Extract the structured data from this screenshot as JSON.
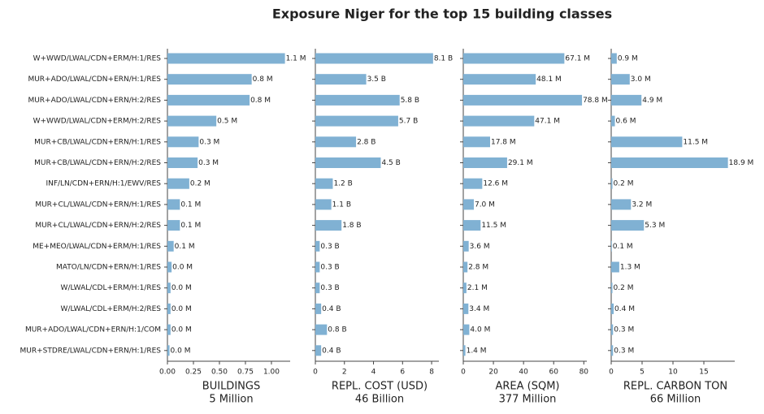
{
  "title": "Exposure Niger for the top 15 building classes",
  "chart_data": [
    {
      "type": "barh",
      "color": "#80b1d3",
      "xlabel": [
        "BUILDINGS",
        "5 Million"
      ],
      "categories": [
        "W+WWD/LWAL/CDN+ERM/H:1/RES",
        "MUR+ADO/LWAL/CDN+ERN/H:1/RES",
        "MUR+ADO/LWAL/CDN+ERN/H:2/RES",
        "W+WWD/LWAL/CDN+ERM/H:2/RES",
        "MUR+CB/LWAL/CDN+ERN/H:1/RES",
        "MUR+CB/LWAL/CDN+ERN/H:2/RES",
        "INF/LN/CDN+ERN/H:1/EWV/RES",
        "MUR+CL/LWAL/CDN+ERN/H:1/RES",
        "MUR+CL/LWAL/CDN+ERN/H:2/RES",
        "ME+MEO/LWAL/CDN+ERM/H:1/RES",
        "MATO/LN/CDN+ERN/H:1/RES",
        "W/LWAL/CDL+ERM/H:1/RES",
        "W/LWAL/CDL+ERM/H:2/RES",
        "MUR+ADO/LWAL/CDN+ERN/H:1/COM",
        "MUR+STDRE/LWAL/CDN+ERN/H:1/RES"
      ],
      "values": [
        1.13,
        0.81,
        0.79,
        0.47,
        0.3,
        0.29,
        0.21,
        0.12,
        0.12,
        0.06,
        0.04,
        0.03,
        0.03,
        0.03,
        0.02
      ],
      "value_labels": [
        "1.1 M",
        "0.8 M",
        "0.8 M",
        "0.5 M",
        "0.3 M",
        "0.3 M",
        "0.2 M",
        "0.1 M",
        "0.1 M",
        "0.1 M",
        "0.0 M",
        "0.0 M",
        "0.0 M",
        "0.0 M",
        "0.0 M"
      ],
      "xlim": [
        0,
        1.18
      ],
      "xticks": [
        {
          "value": 0,
          "label": "0.00"
        },
        {
          "value": 0.25,
          "label": "0.25"
        },
        {
          "value": 0.5,
          "label": "0.50"
        },
        {
          "value": 0.75,
          "label": "0.75"
        },
        {
          "value": 1,
          "label": "1.00"
        }
      ]
    },
    {
      "type": "barh",
      "color": "#80b1d3",
      "xlabel": [
        "REPL. COST (USD)",
        "46 Billion"
      ],
      "values": [
        8.1,
        3.5,
        5.8,
        5.7,
        2.8,
        4.5,
        1.2,
        1.1,
        1.8,
        0.3,
        0.3,
        0.3,
        0.4,
        0.8,
        0.4
      ],
      "value_labels": [
        "8.1 B",
        "3.5 B",
        "5.8 B",
        "5.7 B",
        "2.8 B",
        "4.5 B",
        "1.2 B",
        "1.1 B",
        "1.8 B",
        "0.3 B",
        "0.3 B",
        "0.3 B",
        "0.4 B",
        "0.8 B",
        "0.4 B"
      ],
      "xlim": [
        0,
        8.5
      ],
      "xticks": [
        0,
        2,
        4,
        6,
        8
      ]
    },
    {
      "type": "barh",
      "color": "#80b1d3",
      "xlabel": [
        "AREA (SQM)",
        "377 Million"
      ],
      "values": [
        67.1,
        48.1,
        78.8,
        47.1,
        17.8,
        29.1,
        12.6,
        7.0,
        11.5,
        3.6,
        2.8,
        2.1,
        3.4,
        4.0,
        1.4
      ],
      "value_labels": [
        "67.1 M",
        "48.1 M",
        "78.8 M",
        "47.1 M",
        "17.8 M",
        "29.1 M",
        "12.6 M",
        "7.0 M",
        "11.5 M",
        "3.6 M",
        "2.8 M",
        "2.1 M",
        "3.4 M",
        "4.0 M",
        "1.4 M"
      ],
      "xlim": [
        0,
        82
      ],
      "xticks": [
        0,
        20,
        40,
        60,
        80
      ]
    },
    {
      "type": "barh",
      "color": "#80b1d3",
      "xlabel": [
        "REPL. CARBON TON",
        "66 Million"
      ],
      "values": [
        0.9,
        3.0,
        4.9,
        0.6,
        11.5,
        18.9,
        0.2,
        3.2,
        5.3,
        0.1,
        1.3,
        0.2,
        0.4,
        0.3,
        0.3
      ],
      "value_labels": [
        "0.9 M",
        "3.0 M",
        "4.9 M",
        "0.6 M",
        "11.5 M",
        "18.9 M",
        "0.2 M",
        "3.2 M",
        "5.3 M",
        "0.1 M",
        "1.3 M",
        "0.2 M",
        "0.4 M",
        "0.3 M",
        "0.3 M"
      ],
      "xlim": [
        0,
        20
      ],
      "xticks": [
        0,
        5,
        10,
        15
      ]
    }
  ]
}
